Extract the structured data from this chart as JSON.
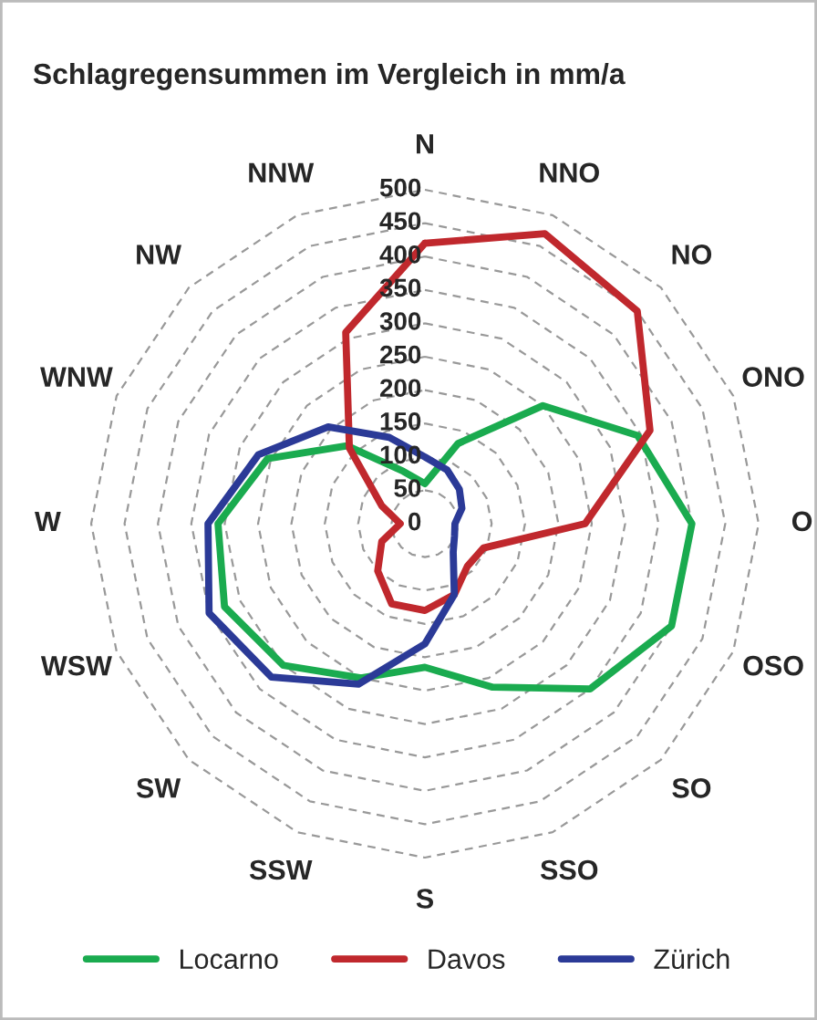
{
  "chart_data": {
    "type": "radar",
    "title": "Schlagregensummen im Vergleich in mm/a",
    "categories": [
      "N",
      "NNO",
      "NO",
      "ONO",
      "O",
      "OSO",
      "SO",
      "SSO",
      "S",
      "SSW",
      "SW",
      "WSW",
      "W",
      "WNW",
      "NW",
      "NNW"
    ],
    "ylim": [
      0,
      500
    ],
    "yticks": [
      0,
      50,
      100,
      150,
      200,
      250,
      300,
      350,
      400,
      450,
      500
    ],
    "grid": true,
    "legend": "bottom",
    "line_style": "solid",
    "series": [
      {
        "name": "Locarno",
        "color": "#1aab4f",
        "values": [
          60,
          130,
          250,
          345,
          400,
          400,
          350,
          265,
          215,
          250,
          300,
          325,
          310,
          255,
          165,
          85
        ]
      },
      {
        "name": "Davos",
        "color": "#c0282d",
        "values": [
          420,
          470,
          450,
          365,
          240,
          95,
          90,
          115,
          130,
          130,
          100,
          70,
          37,
          70,
          160,
          310
        ]
      },
      {
        "name": "Zürich",
        "color": "#2b3a97",
        "values": [
          100,
          87,
          73,
          60,
          45,
          48,
          60,
          115,
          180,
          260,
          325,
          350,
          325,
          270,
          205,
          140
        ]
      }
    ]
  }
}
